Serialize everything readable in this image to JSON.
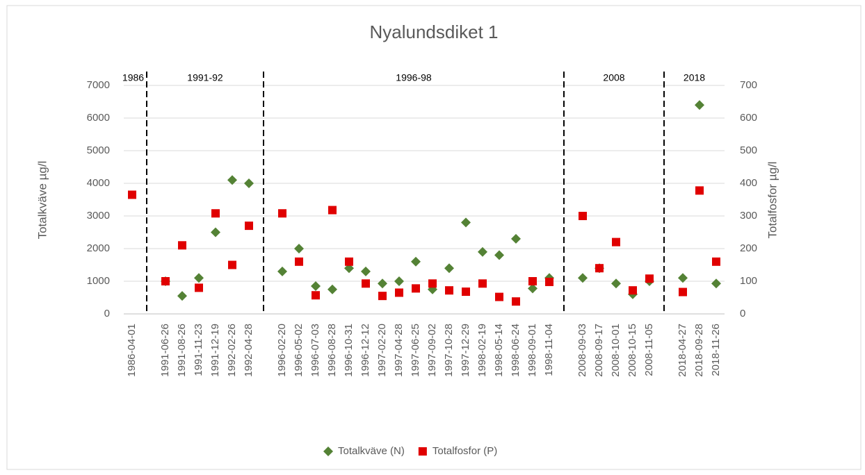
{
  "chart_data": {
    "type": "scatter",
    "title": "Nyalundsdiket 1",
    "y_label": "Totalkväve µg/l",
    "y2_label": "Totalfosfor µg/l",
    "categories": [
      "1986-04-01",
      null,
      "1991-06-26",
      "1991-08-26",
      "1991-11-23",
      "1991-12-19",
      "1992-02-26",
      "1992-04-28",
      null,
      "1996-02-20",
      "1996-05-02",
      "1996-07-03",
      "1996-08-28",
      "1996-10-31",
      "1996-12-12",
      "1997-02-20",
      "1997-04-28",
      "1997-06-25",
      "1997-09-02",
      "1997-10-28",
      "1997-12-29",
      "1998-02-19",
      "1998-05-14",
      "1998-06-24",
      "1998-09-01",
      "1998-11-04",
      null,
      "2008-09-03",
      "2008-09-17",
      "2008-10-01",
      "2008-10-15",
      "2008-11-05",
      null,
      "2018-04-27",
      "2018-09-28",
      "2018-11-26"
    ],
    "periods": [
      "1986",
      "1991-92",
      "1996-98",
      "2008",
      "2018"
    ],
    "series": [
      {
        "name": "Totalkväve (N)",
        "color": "#548235",
        "marker": "diamond",
        "axis": "y",
        "values": [
          null,
          null,
          1000,
          550,
          1100,
          2500,
          4100,
          4000,
          null,
          1300,
          2000,
          850,
          750,
          1400,
          1300,
          930,
          1000,
          1600,
          750,
          1400,
          2800,
          1900,
          1800,
          2300,
          780,
          1100,
          null,
          1100,
          1400,
          930,
          600,
          1000,
          null,
          1100,
          6400,
          930
        ]
      },
      {
        "name": "Totalfosfor (P)",
        "color": "#e00000",
        "marker": "square",
        "axis": "y2",
        "values": [
          365,
          null,
          100,
          210,
          80,
          308,
          150,
          270,
          null,
          308,
          160,
          57,
          318,
          160,
          93,
          55,
          65,
          78,
          93,
          72,
          68,
          93,
          52,
          38,
          100,
          98,
          null,
          300,
          140,
          220,
          72,
          108,
          null,
          67,
          378,
          160
        ]
      }
    ],
    "ylim": [
      0,
      7000
    ],
    "yticks": [
      0,
      1000,
      2000,
      3000,
      4000,
      5000,
      6000,
      7000
    ],
    "y2lim": [
      0,
      700
    ],
    "y2ticks": [
      0,
      100,
      200,
      300,
      400,
      500,
      600,
      700
    ],
    "grid": true,
    "legend": "bottom"
  }
}
